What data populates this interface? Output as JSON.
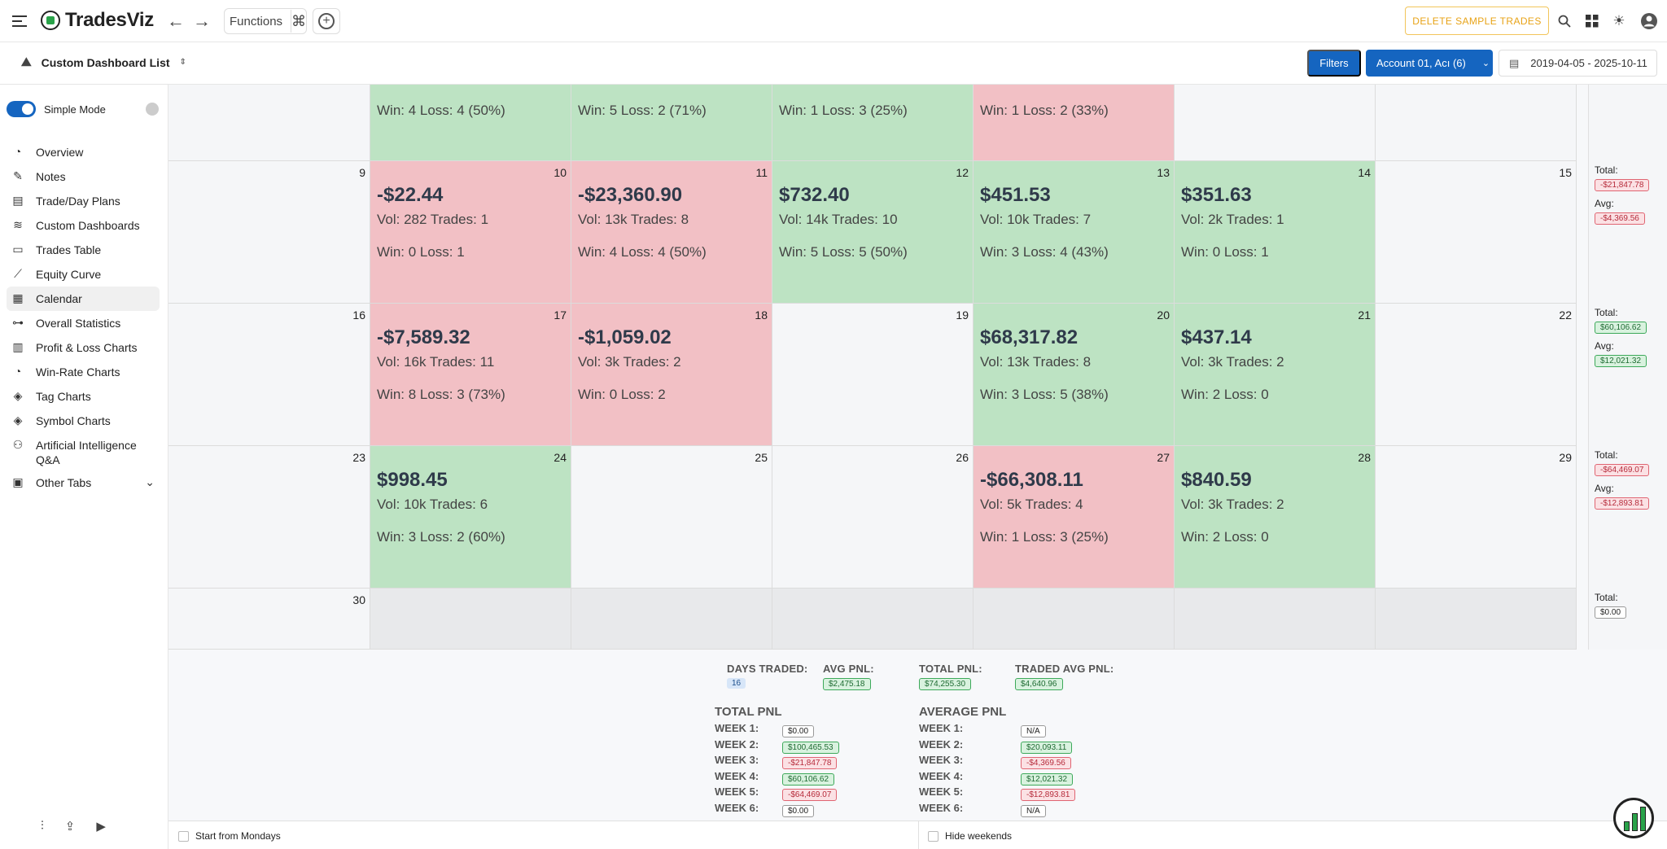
{
  "app": {
    "name": "TradesViz"
  },
  "topbar": {
    "functions_label": "Functions",
    "delete_sample_label": "DELETE SAMPLE TRADES"
  },
  "subbar": {
    "dashboard_list_label": "Custom Dashboard List",
    "filters_label": "Filters",
    "account_label": "Account 01, Acı (6)",
    "date_range": "2019-04-05 - 2025-10-11"
  },
  "sidebar": {
    "mode_label": "Simple Mode",
    "items": [
      {
        "label": "Overview",
        "icon": "pie-chart-icon"
      },
      {
        "label": "Notes",
        "icon": "notes-icon"
      },
      {
        "label": "Trade/Day Plans",
        "icon": "plan-icon"
      },
      {
        "label": "Custom Dashboards",
        "icon": "layers-icon"
      },
      {
        "label": "Trades Table",
        "icon": "table-icon"
      },
      {
        "label": "Equity Curve",
        "icon": "line-chart-icon"
      },
      {
        "label": "Calendar",
        "icon": "calendar-icon"
      },
      {
        "label": "Overall Statistics",
        "icon": "stats-icon"
      },
      {
        "label": "Profit & Loss Charts",
        "icon": "bar-chart-icon"
      },
      {
        "label": "Win-Rate Charts",
        "icon": "pie-chart-icon"
      },
      {
        "label": "Tag Charts",
        "icon": "tag-icon"
      },
      {
        "label": "Symbol Charts",
        "icon": "tag-icon"
      },
      {
        "label": "Artificial Intelligence Q&A",
        "icon": "brain-icon"
      },
      {
        "label": "Other Tabs",
        "icon": "archive-icon"
      }
    ]
  },
  "calendar": {
    "top_row": [
      {
        "wl": "Win: 4 Loss: 4 (50%)",
        "status": "green"
      },
      {
        "wl": "Win: 5 Loss: 2 (71%)",
        "status": "green"
      },
      {
        "wl": "Win: 1 Loss: 3 (25%)",
        "status": "green"
      },
      {
        "wl": "Win: 1 Loss: 2 (33%)",
        "status": "red"
      },
      {
        "wl": "",
        "status": "empty"
      },
      {
        "wl": "",
        "status": "empty"
      }
    ],
    "weeks": [
      [
        {
          "day": "9",
          "status": "empty"
        },
        {
          "day": "10",
          "status": "red",
          "pnl": "-$22.44",
          "vol": "Vol: 282 Trades: 1",
          "wl": "Win: 0 Loss: 1"
        },
        {
          "day": "11",
          "status": "red",
          "pnl": "-$23,360.90",
          "vol": "Vol: 13k Trades: 8",
          "wl": "Win: 4 Loss: 4 (50%)"
        },
        {
          "day": "12",
          "status": "green",
          "pnl": "$732.40",
          "vol": "Vol: 14k Trades: 10",
          "wl": "Win: 5 Loss: 5 (50%)"
        },
        {
          "day": "13",
          "status": "green",
          "pnl": "$451.53",
          "vol": "Vol: 10k Trades: 7",
          "wl": "Win: 3 Loss: 4 (43%)"
        },
        {
          "day": "14",
          "status": "green",
          "pnl": "$351.63",
          "vol": "Vol: 2k Trades: 1",
          "wl": "Win: 0 Loss: 1"
        },
        {
          "day": "15",
          "status": "empty"
        }
      ],
      [
        {
          "day": "16",
          "status": "empty"
        },
        {
          "day": "17",
          "status": "red",
          "pnl": "-$7,589.32",
          "vol": "Vol: 16k Trades: 11",
          "wl": "Win: 8 Loss: 3 (73%)"
        },
        {
          "day": "18",
          "status": "red",
          "pnl": "-$1,059.02",
          "vol": "Vol: 3k Trades: 2",
          "wl": "Win: 0 Loss: 2"
        },
        {
          "day": "19",
          "status": "empty"
        },
        {
          "day": "20",
          "status": "green",
          "pnl": "$68,317.82",
          "vol": "Vol: 13k Trades: 8",
          "wl": "Win: 3 Loss: 5 (38%)"
        },
        {
          "day": "21",
          "status": "green",
          "pnl": "$437.14",
          "vol": "Vol: 3k Trades: 2",
          "wl": "Win: 2 Loss: 0"
        },
        {
          "day": "22",
          "status": "empty"
        }
      ],
      [
        {
          "day": "23",
          "status": "empty"
        },
        {
          "day": "24",
          "status": "green",
          "pnl": "$998.45",
          "vol": "Vol: 10k Trades: 6",
          "wl": "Win: 3 Loss: 2 (60%)"
        },
        {
          "day": "25",
          "status": "empty"
        },
        {
          "day": "26",
          "status": "empty"
        },
        {
          "day": "27",
          "status": "red",
          "pnl": "-$66,308.11",
          "vol": "Vol: 5k Trades: 4",
          "wl": "Win: 1 Loss: 3 (25%)"
        },
        {
          "day": "28",
          "status": "green",
          "pnl": "$840.59",
          "vol": "Vol: 3k Trades: 2",
          "wl": "Win: 2 Loss: 0"
        },
        {
          "day": "29",
          "status": "empty"
        }
      ],
      [
        {
          "day": "30",
          "status": "empty"
        },
        {
          "day": "",
          "status": "gray"
        },
        {
          "day": "",
          "status": "gray"
        },
        {
          "day": "",
          "status": "gray"
        },
        {
          "day": "",
          "status": "gray"
        },
        {
          "day": "",
          "status": "gray"
        },
        {
          "day": "",
          "status": "gray"
        }
      ]
    ],
    "weekly_totals": [
      {
        "total_label": "Total:",
        "total": "-$21,847.78",
        "total_sign": "neg",
        "avg_label": "Avg:",
        "avg": "-$4,369.56",
        "avg_sign": "neg"
      },
      {
        "total_label": "Total:",
        "total": "$60,106.62",
        "total_sign": "pos",
        "avg_label": "Avg:",
        "avg": "$12,021.32",
        "avg_sign": "pos"
      },
      {
        "total_label": "Total:",
        "total": "-$64,469.07",
        "total_sign": "neg",
        "avg_label": "Avg:",
        "avg": "-$12,893.81",
        "avg_sign": "neg"
      },
      {
        "total_label": "Total:",
        "total": "$0.00",
        "total_sign": "neutral"
      }
    ]
  },
  "summary": {
    "days_traded_label": "DAYS TRADED:",
    "days_traded": "16",
    "avg_pnl_label": "AVG PNL:",
    "avg_pnl": "$2,475.18",
    "total_pnl_label": "TOTAL PNL:",
    "total_pnl": "$74,255.30",
    "traded_avg_pnl_label": "TRADED AVG PNL:",
    "traded_avg_pnl": "$4,640.96",
    "total_table_title": "TOTAL PNL",
    "average_table_title": "AVERAGE PNL",
    "rows": [
      {
        "label": "WEEK 1:",
        "total": "$0.00",
        "total_sign": "neutral",
        "avg": "N/A",
        "avg_sign": "neutral"
      },
      {
        "label": "WEEK 2:",
        "total": "$100,465.53",
        "total_sign": "pos",
        "avg": "$20,093.11",
        "avg_sign": "pos"
      },
      {
        "label": "WEEK 3:",
        "total": "-$21,847.78",
        "total_sign": "neg",
        "avg": "-$4,369.56",
        "avg_sign": "neg"
      },
      {
        "label": "WEEK 4:",
        "total": "$60,106.62",
        "total_sign": "pos",
        "avg": "$12,021.32",
        "avg_sign": "pos"
      },
      {
        "label": "WEEK 5:",
        "total": "-$64,469.07",
        "total_sign": "neg",
        "avg": "-$12,893.81",
        "avg_sign": "neg"
      },
      {
        "label": "WEEK 6:",
        "total": "$0.00",
        "total_sign": "neutral",
        "avg": "N/A",
        "avg_sign": "neutral"
      }
    ]
  },
  "footer": {
    "start_mondays_label": "Start from Mondays",
    "hide_weekends_label": "Hide weekends"
  },
  "colors": {
    "accent": "#1565c0",
    "win": "#bde3c3",
    "loss": "#f2c0c5",
    "warn": "#e8a317"
  }
}
